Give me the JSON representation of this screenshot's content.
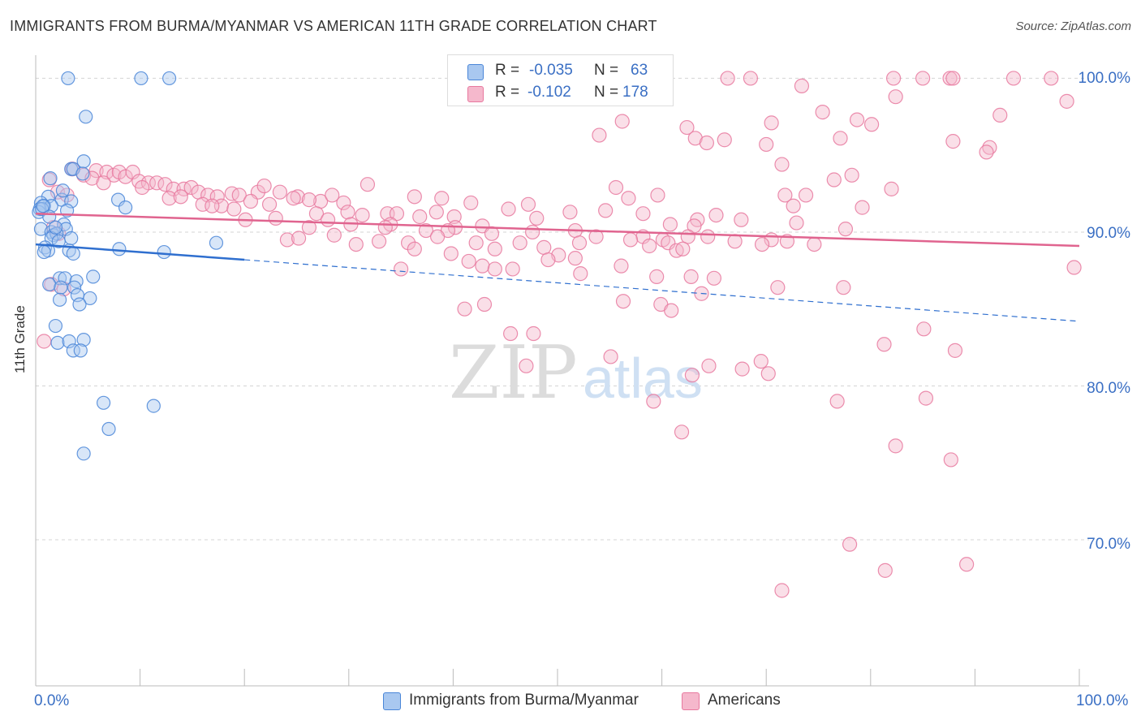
{
  "title": "IMMIGRANTS FROM BURMA/MYANMAR VS AMERICAN 11TH GRADE CORRELATION CHART",
  "source": "Source: ZipAtlas.com",
  "watermark": {
    "zip": "ZIP",
    "atlas": "atlas"
  },
  "legend_top": {
    "r_label": "R =",
    "n_label": "N =",
    "series": [
      {
        "r": "-0.035",
        "n": "63"
      },
      {
        "r": "-0.102",
        "n": "178"
      }
    ]
  },
  "colors": {
    "blue_fill": "#a9c8f0",
    "blue_stroke": "#4a86d8",
    "blue_line": "#2f6fcf",
    "pink_fill": "#f5b8cc",
    "pink_stroke": "#e8799f",
    "pink_line": "#e0648f",
    "tick_text": "#3a6fc4"
  },
  "chart_data": {
    "type": "scatter",
    "title": "IMMIGRANTS FROM BURMA/MYANMAR VS AMERICAN 11TH GRADE CORRELATION CHART",
    "xlabel": "",
    "ylabel": "11th Grade",
    "xlim": [
      0,
      100
    ],
    "ylim": [
      60.5,
      101.5
    ],
    "x_tick_labels": [
      "0.0%",
      "100.0%"
    ],
    "y_ticks": [
      70,
      80,
      90,
      100
    ],
    "y_tick_labels": [
      "70.0%",
      "80.0%",
      "90.0%",
      "100.0%"
    ],
    "grid": "horizontal dashed",
    "series": [
      {
        "name": "Immigrants from Burma/Myanmar",
        "color": "blue",
        "r": -0.035,
        "n": 63,
        "trend": {
          "x0": 0,
          "y0": 89.2,
          "x1": 20,
          "y1": 88.2,
          "dash_to_x": 100,
          "dash_to_y": 84.2
        },
        "points": [
          [
            3.1,
            100.0
          ],
          [
            10.1,
            100.0
          ],
          [
            12.8,
            100.0
          ],
          [
            4.8,
            97.5
          ],
          [
            3.4,
            94.1
          ],
          [
            3.6,
            94.1
          ],
          [
            4.6,
            94.6
          ],
          [
            4.5,
            93.8
          ],
          [
            1.2,
            92.3
          ],
          [
            2.5,
            92.1
          ],
          [
            3.4,
            92.0
          ],
          [
            7.9,
            92.1
          ],
          [
            8.6,
            91.6
          ],
          [
            0.5,
            91.9
          ],
          [
            0.8,
            91.7
          ],
          [
            0.4,
            91.5
          ],
          [
            1.5,
            91.7
          ],
          [
            0.3,
            91.3
          ],
          [
            0.6,
            91.5
          ],
          [
            1.3,
            91.0
          ],
          [
            2.7,
            90.5
          ],
          [
            0.5,
            90.2
          ],
          [
            2.9,
            90.2
          ],
          [
            1.5,
            90.0
          ],
          [
            1.7,
            89.8
          ],
          [
            2.0,
            89.9
          ],
          [
            1.5,
            89.6
          ],
          [
            2.2,
            89.4
          ],
          [
            3.4,
            89.6
          ],
          [
            17.3,
            89.3
          ],
          [
            0.9,
            89.0
          ],
          [
            1.2,
            88.8
          ],
          [
            3.2,
            88.8
          ],
          [
            8.0,
            88.9
          ],
          [
            12.3,
            88.7
          ],
          [
            0.8,
            88.7
          ],
          [
            3.6,
            88.6
          ],
          [
            2.3,
            87.0
          ],
          [
            2.8,
            87.0
          ],
          [
            3.9,
            86.8
          ],
          [
            5.5,
            87.1
          ],
          [
            1.3,
            86.6
          ],
          [
            2.4,
            86.4
          ],
          [
            3.7,
            86.4
          ],
          [
            4.0,
            85.9
          ],
          [
            5.2,
            85.7
          ],
          [
            2.3,
            85.6
          ],
          [
            4.2,
            85.3
          ],
          [
            1.9,
            83.9
          ],
          [
            2.1,
            82.8
          ],
          [
            3.2,
            82.9
          ],
          [
            4.6,
            83.0
          ],
          [
            3.6,
            82.3
          ],
          [
            4.3,
            82.3
          ],
          [
            6.5,
            78.9
          ],
          [
            11.3,
            78.7
          ],
          [
            7.0,
            77.2
          ],
          [
            4.6,
            75.6
          ],
          [
            1.4,
            93.5
          ],
          [
            2.6,
            92.7
          ],
          [
            0.7,
            91.7
          ],
          [
            1.9,
            90.3
          ],
          [
            3.0,
            91.4
          ]
        ]
      },
      {
        "name": "Americans",
        "color": "pink",
        "r": -0.102,
        "n": 178,
        "trend": {
          "x0": 0,
          "y0": 91.2,
          "x1": 100,
          "y1": 89.1
        },
        "points": [
          [
            66.3,
            100.0
          ],
          [
            68.5,
            100.0
          ],
          [
            82.2,
            100.0
          ],
          [
            85.0,
            100.0
          ],
          [
            87.6,
            100.0
          ],
          [
            87.9,
            100.0
          ],
          [
            93.7,
            100.0
          ],
          [
            97.3,
            100.0
          ],
          [
            73.4,
            99.5
          ],
          [
            82.4,
            98.8
          ],
          [
            98.8,
            98.5
          ],
          [
            75.4,
            97.8
          ],
          [
            92.4,
            97.6
          ],
          [
            78.7,
            97.3
          ],
          [
            56.2,
            97.2
          ],
          [
            70.5,
            97.1
          ],
          [
            80.1,
            97.0
          ],
          [
            62.4,
            96.8
          ],
          [
            54.0,
            96.3
          ],
          [
            77.1,
            96.1
          ],
          [
            63.2,
            96.1
          ],
          [
            64.3,
            95.8
          ],
          [
            66.0,
            96.0
          ],
          [
            87.9,
            95.9
          ],
          [
            70.0,
            95.7
          ],
          [
            91.4,
            95.5
          ],
          [
            91.1,
            95.2
          ],
          [
            71.5,
            94.4
          ],
          [
            3.5,
            94.1
          ],
          [
            4.6,
            93.7
          ],
          [
            5.8,
            94.0
          ],
          [
            6.8,
            93.9
          ],
          [
            7.5,
            93.7
          ],
          [
            8.0,
            93.9
          ],
          [
            8.6,
            93.6
          ],
          [
            9.3,
            93.9
          ],
          [
            5.4,
            93.5
          ],
          [
            6.5,
            93.2
          ],
          [
            9.9,
            93.3
          ],
          [
            10.8,
            93.2
          ],
          [
            11.6,
            93.2
          ],
          [
            12.4,
            93.1
          ],
          [
            78.2,
            93.7
          ],
          [
            76.5,
            93.4
          ],
          [
            31.8,
            93.1
          ],
          [
            10.2,
            92.9
          ],
          [
            13.2,
            92.8
          ],
          [
            14.2,
            92.8
          ],
          [
            14.9,
            92.9
          ],
          [
            15.6,
            92.6
          ],
          [
            16.5,
            92.4
          ],
          [
            17.4,
            92.3
          ],
          [
            18.8,
            92.5
          ],
          [
            19.5,
            92.4
          ],
          [
            21.3,
            92.6
          ],
          [
            21.9,
            93.0
          ],
          [
            23.4,
            92.6
          ],
          [
            25.1,
            92.3
          ],
          [
            27.3,
            92.0
          ],
          [
            28.4,
            92.4
          ],
          [
            29.5,
            91.9
          ],
          [
            36.3,
            92.3
          ],
          [
            38.9,
            92.2
          ],
          [
            59.6,
            92.4
          ],
          [
            55.6,
            92.9
          ],
          [
            56.8,
            92.2
          ],
          [
            73.8,
            92.4
          ],
          [
            82.0,
            92.8
          ],
          [
            71.8,
            92.4
          ],
          [
            1.3,
            93.4
          ],
          [
            2.1,
            92.6
          ],
          [
            3.0,
            92.4
          ],
          [
            12.8,
            92.2
          ],
          [
            13.9,
            92.3
          ],
          [
            17.8,
            91.7
          ],
          [
            20.6,
            92.0
          ],
          [
            22.4,
            91.8
          ],
          [
            24.7,
            92.2
          ],
          [
            26.2,
            92.1
          ],
          [
            16.0,
            91.8
          ],
          [
            16.9,
            91.7
          ],
          [
            19.0,
            91.5
          ],
          [
            26.9,
            91.2
          ],
          [
            29.9,
            91.3
          ],
          [
            31.3,
            91.1
          ],
          [
            33.7,
            91.2
          ],
          [
            34.6,
            91.2
          ],
          [
            36.8,
            91.0
          ],
          [
            38.4,
            91.3
          ],
          [
            41.7,
            91.9
          ],
          [
            45.3,
            91.5
          ],
          [
            47.2,
            91.8
          ],
          [
            51.2,
            91.3
          ],
          [
            54.6,
            91.4
          ],
          [
            58.2,
            91.2
          ],
          [
            65.2,
            91.1
          ],
          [
            72.6,
            91.7
          ],
          [
            79.2,
            91.6
          ],
          [
            63.4,
            90.8
          ],
          [
            67.6,
            90.8
          ],
          [
            48.0,
            90.9
          ],
          [
            40.1,
            91.0
          ],
          [
            20.1,
            90.8
          ],
          [
            23.0,
            90.9
          ],
          [
            34.0,
            90.5
          ],
          [
            28.0,
            90.8
          ],
          [
            30.2,
            90.5
          ],
          [
            33.5,
            90.3
          ],
          [
            40.2,
            90.3
          ],
          [
            42.8,
            90.4
          ],
          [
            60.8,
            90.5
          ],
          [
            63.1,
            90.4
          ],
          [
            72.9,
            90.6
          ],
          [
            77.6,
            90.2
          ],
          [
            1.7,
            90.3
          ],
          [
            2.2,
            89.9
          ],
          [
            26.2,
            90.3
          ],
          [
            28.6,
            89.8
          ],
          [
            32.9,
            89.4
          ],
          [
            37.4,
            90.1
          ],
          [
            39.5,
            90.1
          ],
          [
            43.7,
            89.9
          ],
          [
            47.6,
            90.0
          ],
          [
            51.7,
            90.1
          ],
          [
            53.7,
            89.7
          ],
          [
            58.2,
            89.7
          ],
          [
            60.1,
            89.5
          ],
          [
            62.5,
            89.7
          ],
          [
            64.4,
            89.7
          ],
          [
            67.0,
            89.4
          ],
          [
            70.5,
            89.5
          ],
          [
            72.0,
            89.4
          ],
          [
            24.1,
            89.5
          ],
          [
            25.2,
            89.6
          ],
          [
            30.7,
            89.2
          ],
          [
            35.7,
            89.3
          ],
          [
            38.5,
            89.7
          ],
          [
            42.2,
            89.3
          ],
          [
            44.0,
            88.9
          ],
          [
            46.4,
            89.3
          ],
          [
            48.7,
            89.0
          ],
          [
            50.1,
            88.5
          ],
          [
            52.1,
            89.3
          ],
          [
            57.0,
            89.5
          ],
          [
            58.8,
            89.1
          ],
          [
            60.6,
            89.3
          ],
          [
            61.4,
            88.8
          ],
          [
            62.0,
            88.9
          ],
          [
            69.6,
            89.2
          ],
          [
            74.6,
            89.2
          ],
          [
            36.3,
            88.9
          ],
          [
            39.8,
            88.6
          ],
          [
            41.5,
            88.1
          ],
          [
            42.8,
            87.8
          ],
          [
            44.0,
            87.6
          ],
          [
            45.7,
            87.6
          ],
          [
            49.1,
            88.2
          ],
          [
            51.7,
            88.3
          ],
          [
            35.0,
            87.6
          ],
          [
            56.1,
            87.8
          ],
          [
            59.5,
            87.1
          ],
          [
            62.8,
            87.1
          ],
          [
            65.0,
            87.0
          ],
          [
            52.2,
            87.3
          ],
          [
            77.4,
            86.4
          ],
          [
            56.3,
            85.5
          ],
          [
            59.9,
            85.3
          ],
          [
            60.9,
            84.9
          ],
          [
            41.1,
            85.0
          ],
          [
            43.0,
            85.3
          ],
          [
            71.1,
            86.4
          ],
          [
            63.8,
            86.0
          ],
          [
            99.5,
            87.7
          ],
          [
            45.5,
            83.4
          ],
          [
            47.7,
            83.4
          ],
          [
            85.1,
            83.7
          ],
          [
            88.1,
            82.3
          ],
          [
            47.0,
            81.3
          ],
          [
            69.5,
            81.6
          ],
          [
            67.7,
            81.1
          ],
          [
            64.5,
            81.3
          ],
          [
            62.9,
            80.7
          ],
          [
            70.2,
            80.8
          ],
          [
            0.8,
            82.9
          ],
          [
            81.3,
            82.7
          ],
          [
            76.8,
            79.0
          ],
          [
            59.2,
            79.0
          ],
          [
            85.3,
            79.2
          ],
          [
            61.9,
            77.0
          ],
          [
            82.4,
            76.1
          ],
          [
            87.7,
            75.2
          ],
          [
            78.0,
            69.7
          ],
          [
            81.4,
            68.0
          ],
          [
            71.5,
            66.7
          ],
          [
            89.2,
            68.4
          ],
          [
            55.1,
            81.9
          ],
          [
            1.5,
            86.6
          ],
          [
            2.7,
            86.3
          ]
        ]
      }
    ]
  },
  "bottom_legend": [
    "Immigrants from Burma/Myanmar",
    "Americans"
  ]
}
